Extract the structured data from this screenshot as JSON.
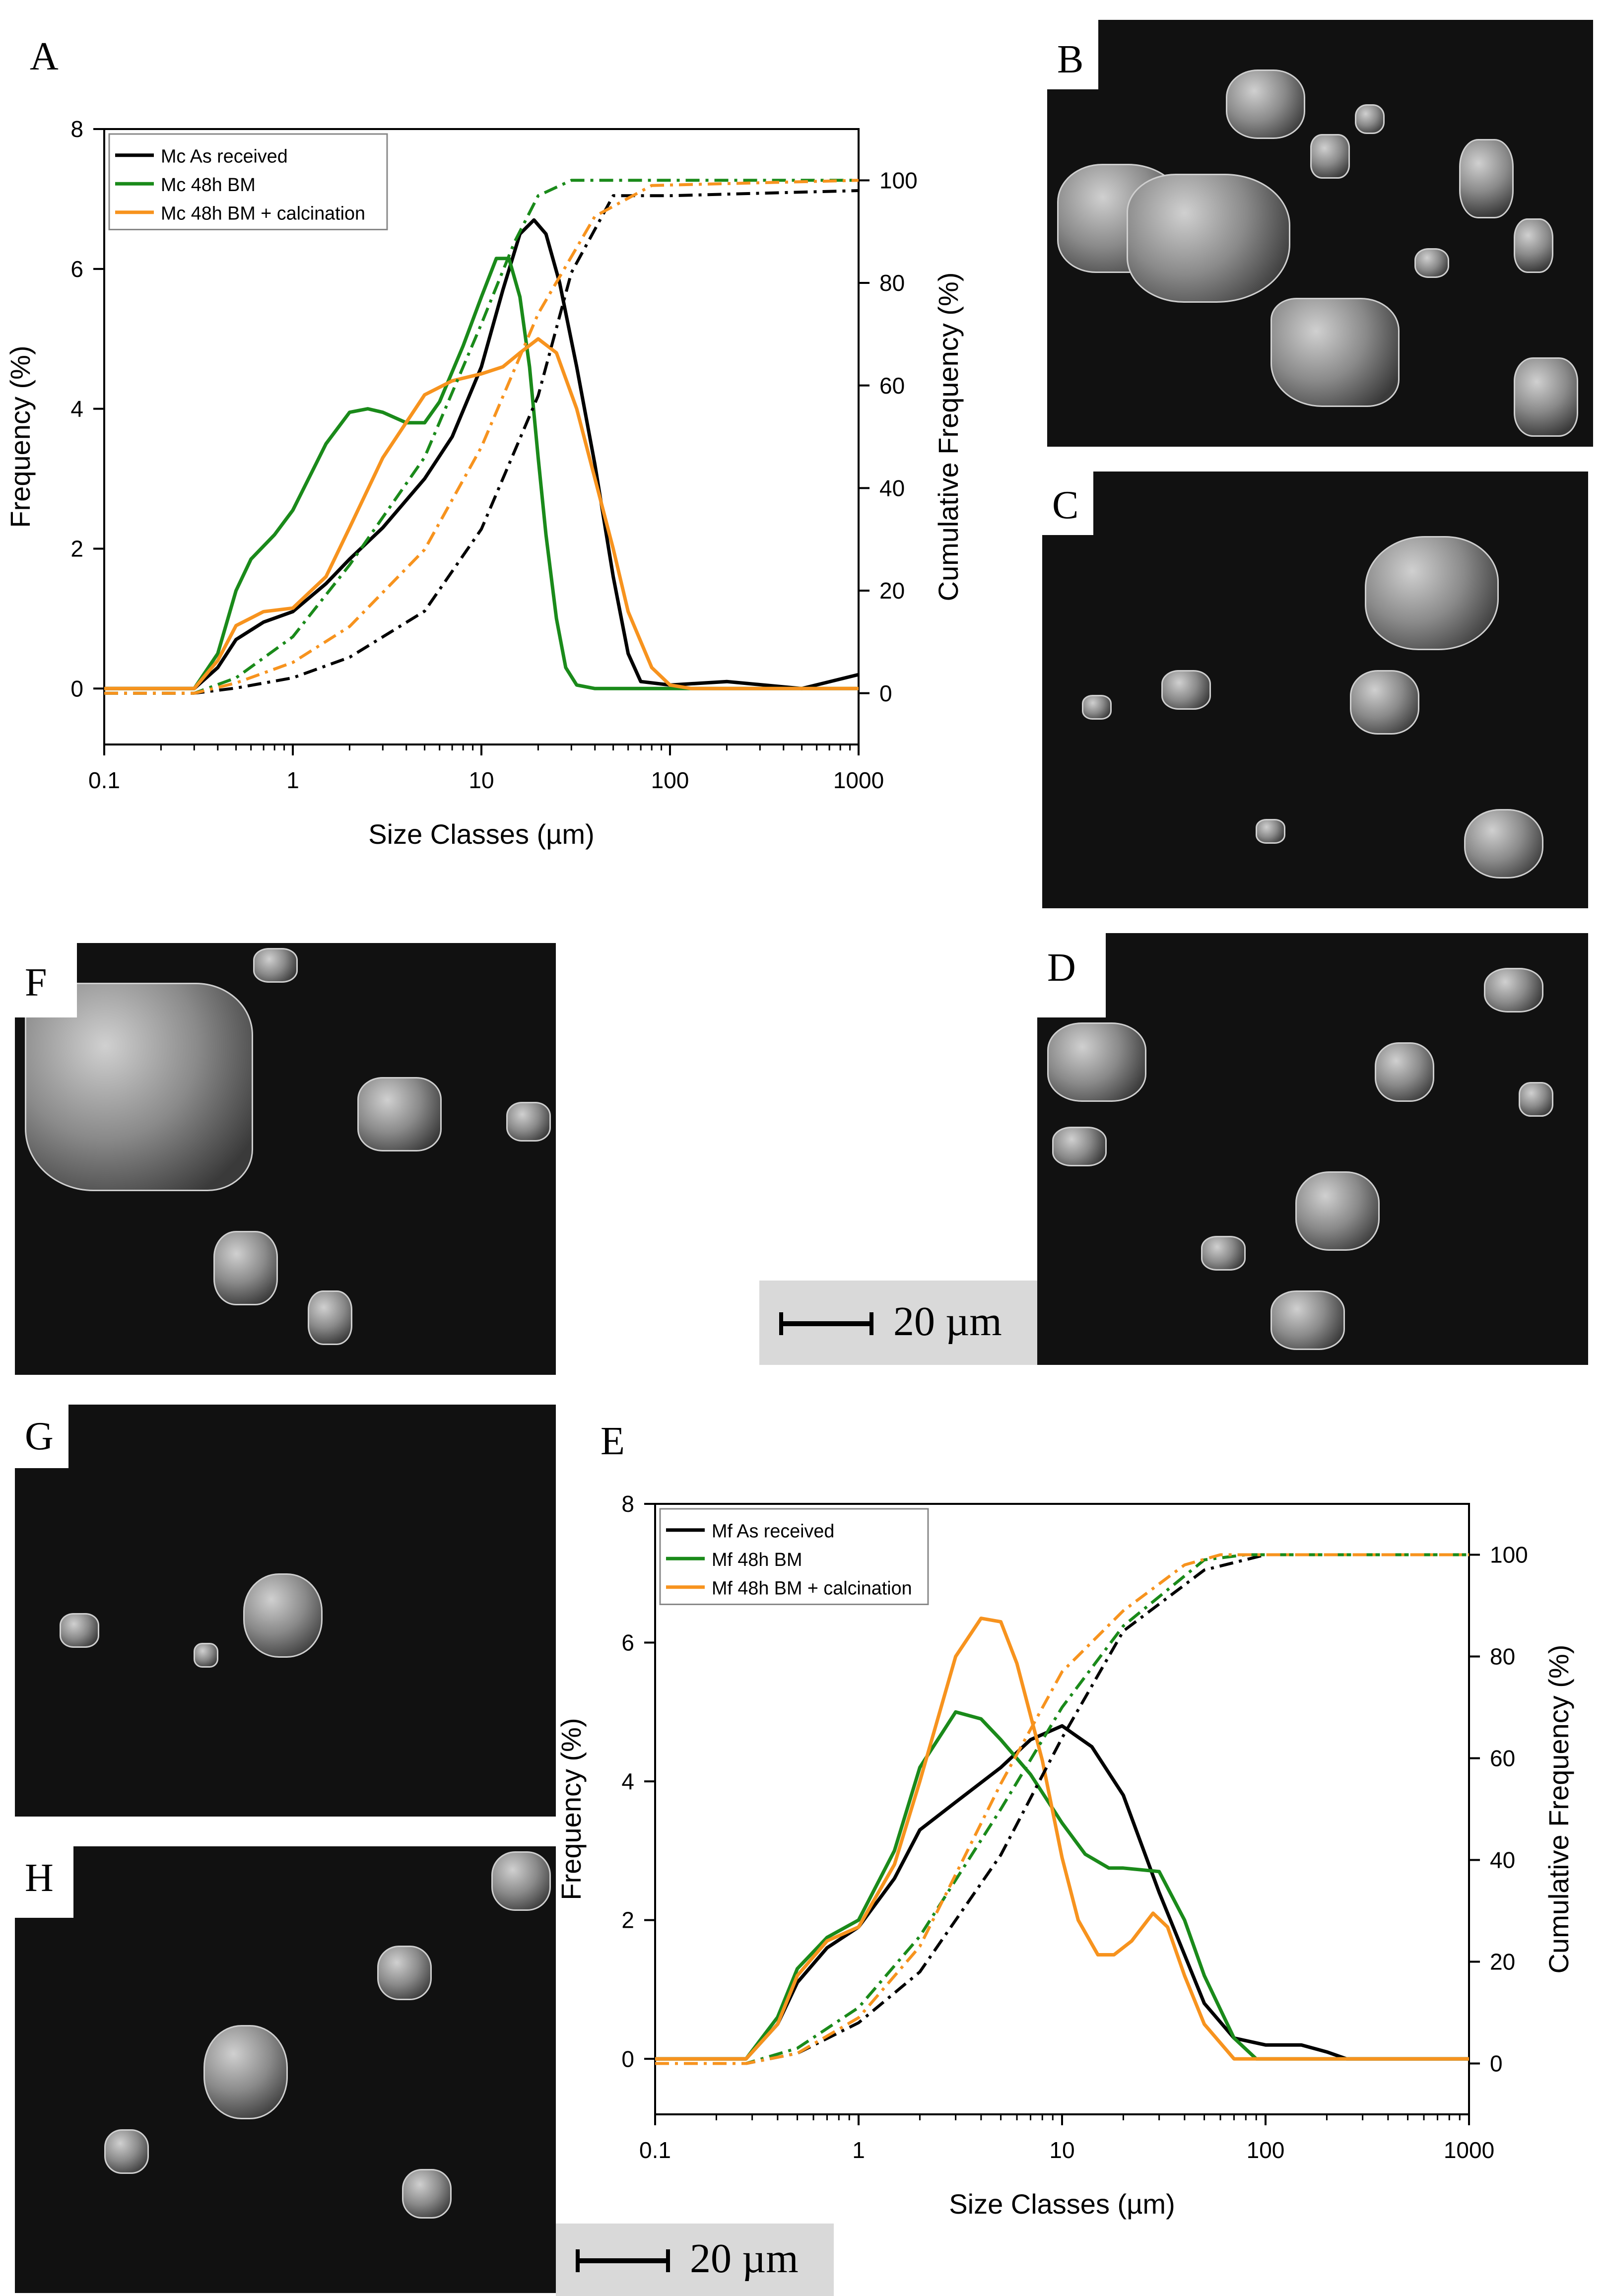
{
  "panels": {
    "A": "A",
    "B": "B",
    "C": "C",
    "D": "D",
    "E": "E",
    "F": "F",
    "G": "G",
    "H": "H"
  },
  "scale_bars": [
    {
      "label": "20 µm"
    },
    {
      "label": "20 µm"
    }
  ],
  "colors": {
    "black": "#000000",
    "green": "#1a8a1a",
    "orange": "#f7931e"
  },
  "chart_data": [
    {
      "type": "line",
      "panel": "A",
      "x_scale": "log",
      "xlabel": "Size Classes (µm)",
      "ylabel": "Frequency (%)",
      "y2label": "Cumulative Frequency (%)",
      "xlim": [
        0.1,
        1000
      ],
      "ylim": [
        -0.8,
        8
      ],
      "y2lim": [
        -10,
        110
      ],
      "x_ticks": [
        "0.1",
        "1",
        "10",
        "100",
        "1000"
      ],
      "x_tick_values": [
        0.1,
        1,
        10,
        100,
        1000
      ],
      "y_ticks": [
        0,
        2,
        4,
        6,
        8
      ],
      "y2_ticks": [
        0,
        20,
        40,
        60,
        80,
        100
      ],
      "legend_position": "top-left",
      "series": [
        {
          "name": "Mc  As received",
          "color": "#000000",
          "x": [
            0.1,
            0.3,
            0.4,
            0.5,
            0.7,
            1,
            1.5,
            2,
            3,
            5,
            7,
            10,
            13,
            16,
            19,
            22,
            26,
            32,
            40,
            50,
            60,
            70,
            100,
            200,
            500,
            1000
          ],
          "y": [
            0,
            0,
            0.3,
            0.7,
            0.95,
            1.1,
            1.5,
            1.85,
            2.3,
            3.0,
            3.6,
            4.6,
            5.7,
            6.5,
            6.7,
            6.5,
            5.8,
            4.6,
            3.2,
            1.6,
            0.5,
            0.1,
            0.05,
            0.1,
            0,
            0.2
          ]
        },
        {
          "name": "Mc 48h BM",
          "color": "#1a8a1a",
          "x": [
            0.1,
            0.3,
            0.4,
            0.5,
            0.6,
            0.8,
            1,
            1.5,
            2,
            2.5,
            3,
            4,
            5,
            6,
            8,
            10,
            12,
            14,
            16,
            18,
            20,
            22,
            25,
            28,
            32,
            40,
            100,
            1000
          ],
          "y": [
            0,
            0,
            0.5,
            1.4,
            1.85,
            2.2,
            2.55,
            3.5,
            3.95,
            4.0,
            3.95,
            3.8,
            3.8,
            4.1,
            4.9,
            5.6,
            6.15,
            6.15,
            5.6,
            4.6,
            3.3,
            2.2,
            1.0,
            0.3,
            0.05,
            0,
            0,
            0
          ]
        },
        {
          "name": "Mc 48h BM + calcination",
          "color": "#f7931e",
          "x": [
            0.1,
            0.3,
            0.4,
            0.5,
            0.7,
            1,
            1.5,
            2,
            3,
            5,
            7,
            10,
            13,
            16,
            20,
            25,
            32,
            40,
            50,
            60,
            80,
            100,
            130,
            1000
          ],
          "y": [
            0,
            0,
            0.4,
            0.9,
            1.1,
            1.15,
            1.6,
            2.3,
            3.3,
            4.2,
            4.4,
            4.5,
            4.6,
            4.8,
            5.0,
            4.8,
            4.0,
            3.0,
            2.0,
            1.1,
            0.3,
            0.05,
            0,
            0
          ]
        }
      ],
      "cumulative_series": [
        {
          "name": "Mc  As received",
          "color": "#000000",
          "x": [
            0.1,
            0.3,
            0.5,
            1,
            2,
            5,
            10,
            20,
            30,
            50,
            100,
            1000
          ],
          "y": [
            0,
            0,
            1,
            3,
            7,
            16,
            32,
            58,
            82,
            97,
            97,
            98
          ]
        },
        {
          "name": "Mc 48h BM",
          "color": "#1a8a1a",
          "x": [
            0.1,
            0.3,
            0.5,
            1,
            2,
            5,
            10,
            15,
            20,
            30,
            1000
          ],
          "y": [
            0,
            0,
            3,
            11,
            25,
            46,
            72,
            88,
            97,
            100,
            100
          ]
        },
        {
          "name": "Mc 48h BM + calcination",
          "color": "#f7931e",
          "x": [
            0.1,
            0.3,
            0.5,
            1,
            2,
            5,
            10,
            20,
            40,
            80,
            1000
          ],
          "y": [
            0,
            0,
            2,
            6,
            13,
            28,
            48,
            74,
            93,
            99,
            100
          ]
        }
      ]
    },
    {
      "type": "line",
      "panel": "E",
      "x_scale": "log",
      "xlabel": "Size Classes (µm)",
      "ylabel": "Frequency (%)",
      "y2label": "Cumulative Frequency (%)",
      "xlim": [
        0.1,
        1000
      ],
      "ylim": [
        -0.8,
        8
      ],
      "y2lim": [
        -10,
        110
      ],
      "x_ticks": [
        "0.1",
        "1",
        "10",
        "100",
        "1000"
      ],
      "x_tick_values": [
        0.1,
        1,
        10,
        100,
        1000
      ],
      "y_ticks": [
        0,
        2,
        4,
        6,
        8
      ],
      "y2_ticks": [
        0,
        20,
        40,
        60,
        80,
        100
      ],
      "legend_position": "top-left",
      "series": [
        {
          "name": "Mf As received",
          "color": "#000000",
          "x": [
            0.1,
            0.28,
            0.4,
            0.5,
            0.7,
            1,
            1.5,
            2,
            3,
            5,
            7,
            10,
            14,
            20,
            30,
            50,
            70,
            100,
            150,
            200,
            250,
            1000
          ],
          "y": [
            0,
            0,
            0.5,
            1.1,
            1.6,
            1.9,
            2.6,
            3.3,
            3.7,
            4.2,
            4.6,
            4.8,
            4.5,
            3.8,
            2.4,
            0.8,
            0.3,
            0.2,
            0.2,
            0.1,
            0,
            0
          ]
        },
        {
          "name": "Mf 48h BM",
          "color": "#1a8a1a",
          "x": [
            0.1,
            0.28,
            0.4,
            0.5,
            0.7,
            1,
            1.5,
            2,
            3,
            4,
            5,
            7,
            10,
            13,
            17,
            20,
            30,
            40,
            50,
            70,
            90,
            1000
          ],
          "y": [
            0,
            0,
            0.6,
            1.3,
            1.75,
            2.0,
            3.0,
            4.2,
            5.0,
            4.9,
            4.6,
            4.1,
            3.4,
            2.95,
            2.75,
            2.75,
            2.7,
            2.0,
            1.2,
            0.3,
            0,
            0
          ]
        },
        {
          "name": "Mf 48h BM + calcination",
          "color": "#f7931e",
          "x": [
            0.1,
            0.28,
            0.4,
            0.5,
            0.7,
            1,
            1.5,
            2,
            3,
            4,
            5,
            6,
            8,
            10,
            12,
            15,
            18,
            22,
            28,
            33,
            40,
            50,
            70,
            1000
          ],
          "y": [
            0,
            0,
            0.5,
            1.2,
            1.7,
            1.9,
            2.8,
            4.0,
            5.8,
            6.35,
            6.3,
            5.7,
            4.3,
            2.9,
            2.0,
            1.5,
            1.5,
            1.7,
            2.1,
            1.9,
            1.2,
            0.5,
            0,
            0
          ]
        }
      ],
      "cumulative_series": [
        {
          "name": "Mf As received",
          "color": "#000000",
          "x": [
            0.1,
            0.28,
            0.5,
            1,
            2,
            5,
            10,
            20,
            50,
            100,
            1000
          ],
          "y": [
            0,
            0,
            2,
            8,
            18,
            41,
            64,
            85,
            97,
            100,
            100
          ]
        },
        {
          "name": "Mf 48h BM",
          "color": "#1a8a1a",
          "x": [
            0.1,
            0.28,
            0.5,
            1,
            2,
            5,
            10,
            20,
            50,
            80,
            1000
          ],
          "y": [
            0,
            0,
            3,
            11,
            25,
            50,
            70,
            86,
            99,
            100,
            100
          ]
        },
        {
          "name": "Mf 48h BM + calcination",
          "color": "#f7931e",
          "x": [
            0.1,
            0.28,
            0.5,
            1,
            2,
            5,
            10,
            20,
            40,
            60,
            1000
          ],
          "y": [
            0,
            0,
            2,
            9,
            23,
            55,
            77,
            89,
            98,
            100,
            100
          ]
        }
      ]
    }
  ]
}
